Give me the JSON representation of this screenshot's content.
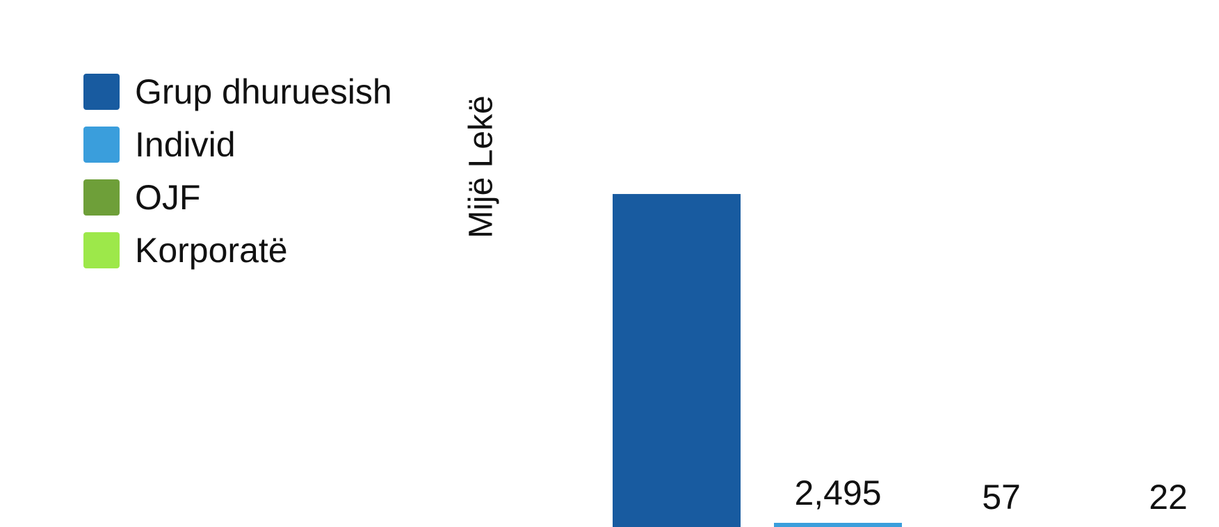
{
  "chart_data": {
    "type": "bar",
    "title": "",
    "xlabel": "",
    "ylabel": "Mijë Lekë",
    "categories": [
      "Grup dhuruesish",
      "Individ",
      "OJF",
      "Korporatë"
    ],
    "values": [
      150000,
      2495,
      57,
      22
    ],
    "data_labels": [
      "",
      "2,495",
      "57",
      "22"
    ],
    "colors": [
      "#185ba0",
      "#3a9edc",
      "#6e9f39",
      "#9de84a"
    ],
    "legend": [
      {
        "label": "Grup dhuruesish",
        "color": "#185ba0"
      },
      {
        "label": "Individ",
        "color": "#3a9edc"
      },
      {
        "label": "OJF",
        "color": "#6e9f39"
      },
      {
        "label": "Korporatë",
        "color": "#9de84a"
      }
    ],
    "legend_position": "left",
    "grid": false
  }
}
